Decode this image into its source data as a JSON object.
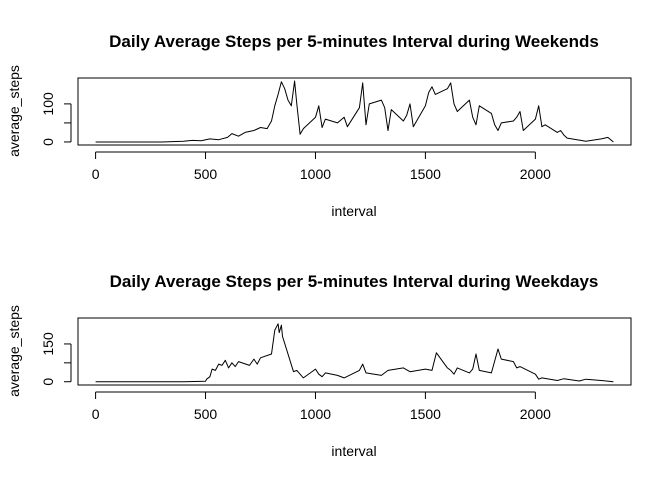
{
  "chart_data": [
    {
      "type": "line",
      "title": "Daily Average Steps per 5-minutes Interval during Weekends",
      "xlabel": "interval",
      "ylabel": "average_steps",
      "xlim": [
        -80,
        2435
      ],
      "ylim": [
        -8,
        168
      ],
      "xticks": [
        0,
        500,
        1000,
        1500,
        2000
      ],
      "yticks": [
        0,
        100
      ],
      "xtick_labels": [
        "0",
        "500",
        "1000",
        "1500",
        "2000"
      ],
      "ytick_labels": [
        "0",
        "100"
      ],
      "series": [
        {
          "x": [
            0,
            100,
            200,
            300,
            400,
            440,
            480,
            520,
            560,
            600,
            620,
            650,
            680,
            720,
            750,
            780,
            800,
            815,
            830,
            845,
            860,
            875,
            890,
            905,
            915,
            930,
            945,
            1000,
            1015,
            1030,
            1045,
            1100,
            1130,
            1145,
            1200,
            1215,
            1230,
            1245,
            1300,
            1315,
            1330,
            1345,
            1400,
            1415,
            1430,
            1445,
            1500,
            1515,
            1530,
            1545,
            1600,
            1615,
            1630,
            1645,
            1700,
            1715,
            1730,
            1745,
            1800,
            1815,
            1830,
            1845,
            1900,
            1915,
            1930,
            1945,
            2000,
            2015,
            2030,
            2045,
            2100,
            2115,
            2130,
            2145,
            2200,
            2230,
            2300,
            2330,
            2355
          ],
          "y": [
            0,
            0,
            0,
            0,
            2,
            4,
            3,
            8,
            6,
            12,
            22,
            15,
            25,
            30,
            38,
            35,
            55,
            95,
            125,
            158,
            140,
            110,
            95,
            160,
            100,
            20,
            35,
            65,
            95,
            38,
            60,
            50,
            65,
            40,
            90,
            155,
            45,
            100,
            110,
            90,
            30,
            85,
            55,
            70,
            100,
            40,
            95,
            130,
            145,
            125,
            140,
            155,
            100,
            80,
            110,
            65,
            45,
            95,
            75,
            45,
            30,
            50,
            55,
            65,
            80,
            30,
            60,
            95,
            40,
            45,
            25,
            30,
            18,
            10,
            5,
            2,
            8,
            12,
            0
          ]
        }
      ]
    },
    {
      "type": "line",
      "title": "Daily Average Steps per 5-minutes Interval during Weekdays",
      "xlabel": "interval",
      "ylabel": "average_steps",
      "xlim": [
        -80,
        2435
      ],
      "ylim": [
        -13,
        253
      ],
      "xticks": [
        0,
        500,
        1000,
        1500,
        2000
      ],
      "yticks": [
        0,
        150
      ],
      "xtick_labels": [
        "0",
        "500",
        "1000",
        "1500",
        "2000"
      ],
      "ytick_labels": [
        "0",
        "150"
      ],
      "series": [
        {
          "x": [
            0,
            100,
            200,
            300,
            400,
            500,
            505,
            520,
            530,
            545,
            560,
            575,
            590,
            605,
            620,
            635,
            650,
            700,
            720,
            735,
            750,
            800,
            815,
            830,
            835,
            845,
            850,
            900,
            915,
            930,
            945,
            1000,
            1015,
            1030,
            1045,
            1100,
            1130,
            1200,
            1215,
            1230,
            1300,
            1330,
            1400,
            1430,
            1500,
            1530,
            1550,
            1600,
            1615,
            1630,
            1645,
            1700,
            1715,
            1730,
            1745,
            1800,
            1830,
            1845,
            1900,
            1915,
            1930,
            2000,
            2015,
            2030,
            2100,
            2130,
            2200,
            2230,
            2300,
            2355
          ],
          "y": [
            0,
            0,
            0,
            0,
            0,
            2,
            10,
            20,
            50,
            45,
            70,
            65,
            85,
            55,
            75,
            60,
            80,
            65,
            90,
            70,
            95,
            110,
            205,
            230,
            195,
            225,
            180,
            40,
            45,
            30,
            15,
            50,
            30,
            20,
            35,
            25,
            15,
            45,
            70,
            35,
            25,
            45,
            55,
            40,
            50,
            45,
            115,
            55,
            45,
            30,
            55,
            35,
            50,
            110,
            45,
            35,
            130,
            90,
            80,
            55,
            60,
            30,
            10,
            15,
            5,
            12,
            3,
            10,
            5,
            0
          ]
        }
      ]
    }
  ]
}
